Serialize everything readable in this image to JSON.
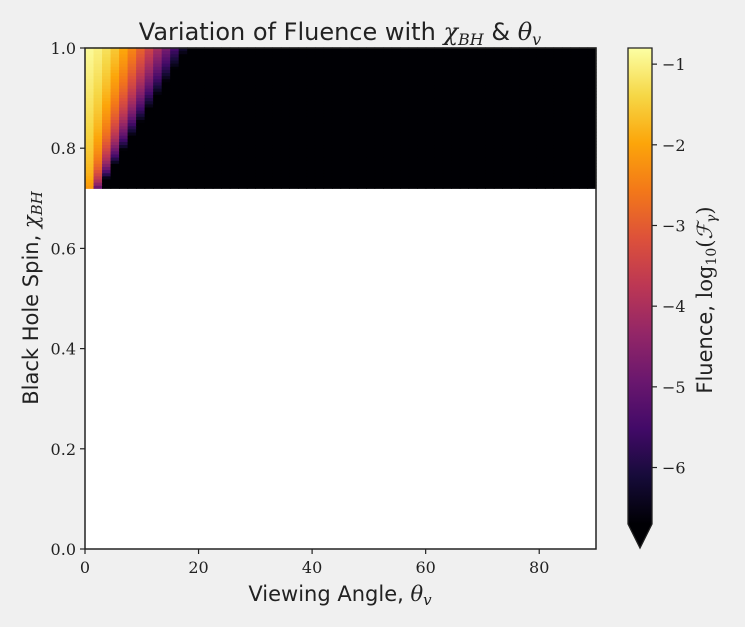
{
  "chart_data": {
    "type": "heatmap",
    "title": "Variation of Fluence with",
    "title_math": "χ_BH & θ_v",
    "xlabel": "Viewing Angle,",
    "xlabel_math": "θ_v",
    "ylabel": "Black Hole Spin,",
    "ylabel_math": "χ_BH",
    "xlim": [
      0,
      90
    ],
    "ylim": [
      0.0,
      1.0
    ],
    "x_ticks": [
      "0",
      "20",
      "40",
      "60",
      "80"
    ],
    "y_ticks": [
      "0.0",
      "0.2",
      "0.4",
      "0.6",
      "0.8",
      "1.0"
    ],
    "colorbar": {
      "label": "Fluence,",
      "label_math": "log10(F_γ)",
      "colormap": "inferno",
      "range": [
        -6.7,
        -0.8
      ],
      "extend": "min",
      "ticks": [
        "−1",
        "−2",
        "−3",
        "−4",
        "−5",
        "−6"
      ]
    },
    "grid": {
      "x_step": 1.5,
      "y_step": 0.00625,
      "data_region": {
        "x": [
          0,
          90
        ],
        "y": [
          0.72,
          1.0
        ]
      },
      "empty_region": {
        "y": [
          0.0,
          0.72
        ],
        "value": "no data"
      }
    },
    "model_description": "log10 fluence ≈ -6.7 for θ_v ≥ ~20°; bright peak ≈ -0.85 at θ_v=0, χ_BH=1.0, decaying with θ_v and χ_BH down to 0.72"
  },
  "colors": {
    "background": "#f0f0f0",
    "axes_face": "#ffffff",
    "frame": "#222222"
  }
}
